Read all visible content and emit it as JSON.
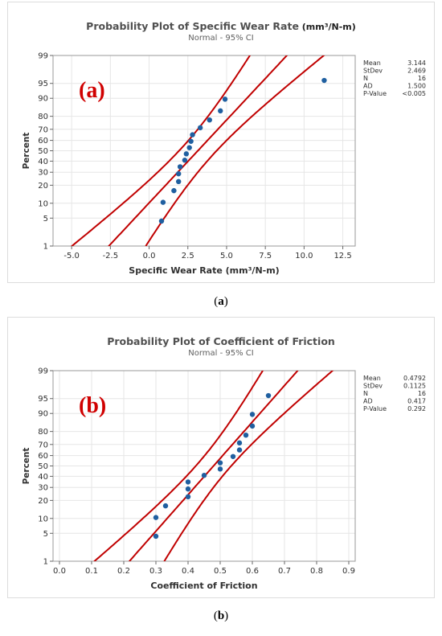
{
  "chart_data": [
    {
      "type": "scatter",
      "title": "Probability Plot of Specific Wear Rate",
      "title_unit": "(mm³/N-m)",
      "subtitle": "Normal - 95% CI",
      "panel_tag": "(a)",
      "xlabel": "Specific Wear Rate",
      "xlabel_unit": "(mm³/N-m)",
      "ylabel": "Percent",
      "xlim": [
        -6.2,
        13.3
      ],
      "xticks": [
        -5.0,
        -2.5,
        0.0,
        2.5,
        5.0,
        7.5,
        10.0,
        12.5
      ],
      "xtick_labels": [
        "-5.0",
        "-2.5",
        "0.0",
        "2.5",
        "5.0",
        "7.5",
        "10.0",
        "12.5"
      ],
      "yscale": "normal probability",
      "yticks": [
        1,
        5,
        10,
        20,
        30,
        40,
        50,
        60,
        70,
        80,
        90,
        95,
        99
      ],
      "grid": true,
      "series": [
        {
          "x": [
            0.8,
            0.9,
            1.6,
            1.9,
            1.9,
            2.0,
            2.3,
            2.4,
            2.6,
            2.7,
            2.8,
            3.3,
            3.9,
            4.6,
            4.9,
            11.3
          ],
          "y": [
            4.3,
            10.4,
            16.5,
            22.6,
            28.7,
            34.8,
            40.9,
            47.0,
            53.0,
            59.1,
            65.2,
            71.3,
            77.4,
            83.5,
            89.6,
            95.7
          ]
        }
      ],
      "fit": {
        "mean": 3.144,
        "sd": 2.469,
        "ci": 0.95,
        "n": 16
      },
      "stats": [
        {
          "label": "Mean",
          "value": "3.144"
        },
        {
          "label": "StDev",
          "value": "2.469"
        },
        {
          "label": "N",
          "value": "16"
        },
        {
          "label": "AD",
          "value": "1.500"
        },
        {
          "label": "P-Value",
          "value": "<0.005"
        }
      ],
      "caption": "(a)",
      "colors": {
        "points": "#1f5fa0",
        "lines": "#c00000",
        "grid": "#e6e6e6",
        "tag": "#d00000"
      }
    },
    {
      "type": "scatter",
      "title": "Probability Plot of Coefficient of Friction",
      "subtitle": "Normal - 95% CI",
      "panel_tag": "(b)",
      "xlabel": "Coefficient of Friction",
      "ylabel": "Percent",
      "xlim": [
        -0.02,
        0.92
      ],
      "xticks": [
        0.0,
        0.1,
        0.2,
        0.3,
        0.4,
        0.5,
        0.6,
        0.7,
        0.8,
        0.9
      ],
      "xtick_labels": [
        "0.0",
        "0.1",
        "0.2",
        "0.3",
        "0.4",
        "0.5",
        "0.6",
        "0.7",
        "0.8",
        "0.9"
      ],
      "yscale": "normal probability",
      "yticks": [
        1,
        5,
        10,
        20,
        30,
        40,
        50,
        60,
        70,
        80,
        90,
        95,
        99
      ],
      "grid": true,
      "series": [
        {
          "x": [
            0.3,
            0.3,
            0.33,
            0.4,
            0.4,
            0.4,
            0.45,
            0.5,
            0.5,
            0.54,
            0.56,
            0.56,
            0.58,
            0.6,
            0.6,
            0.65
          ],
          "y": [
            4.3,
            10.4,
            16.5,
            22.6,
            28.7,
            34.8,
            40.9,
            47.0,
            53.0,
            59.1,
            65.2,
            71.3,
            77.4,
            83.5,
            89.6,
            95.7
          ]
        }
      ],
      "fit": {
        "mean": 0.4792,
        "sd": 0.1125,
        "ci": 0.95,
        "n": 16
      },
      "stats": [
        {
          "label": "Mean",
          "value": "0.4792"
        },
        {
          "label": "StDev",
          "value": "0.1125"
        },
        {
          "label": "N",
          "value": "16"
        },
        {
          "label": "AD",
          "value": "0.417"
        },
        {
          "label": "P-Value",
          "value": "0.292"
        }
      ],
      "caption": "(b)",
      "colors": {
        "points": "#1f5fa0",
        "lines": "#c00000",
        "grid": "#e6e6e6",
        "tag": "#d00000"
      }
    }
  ]
}
